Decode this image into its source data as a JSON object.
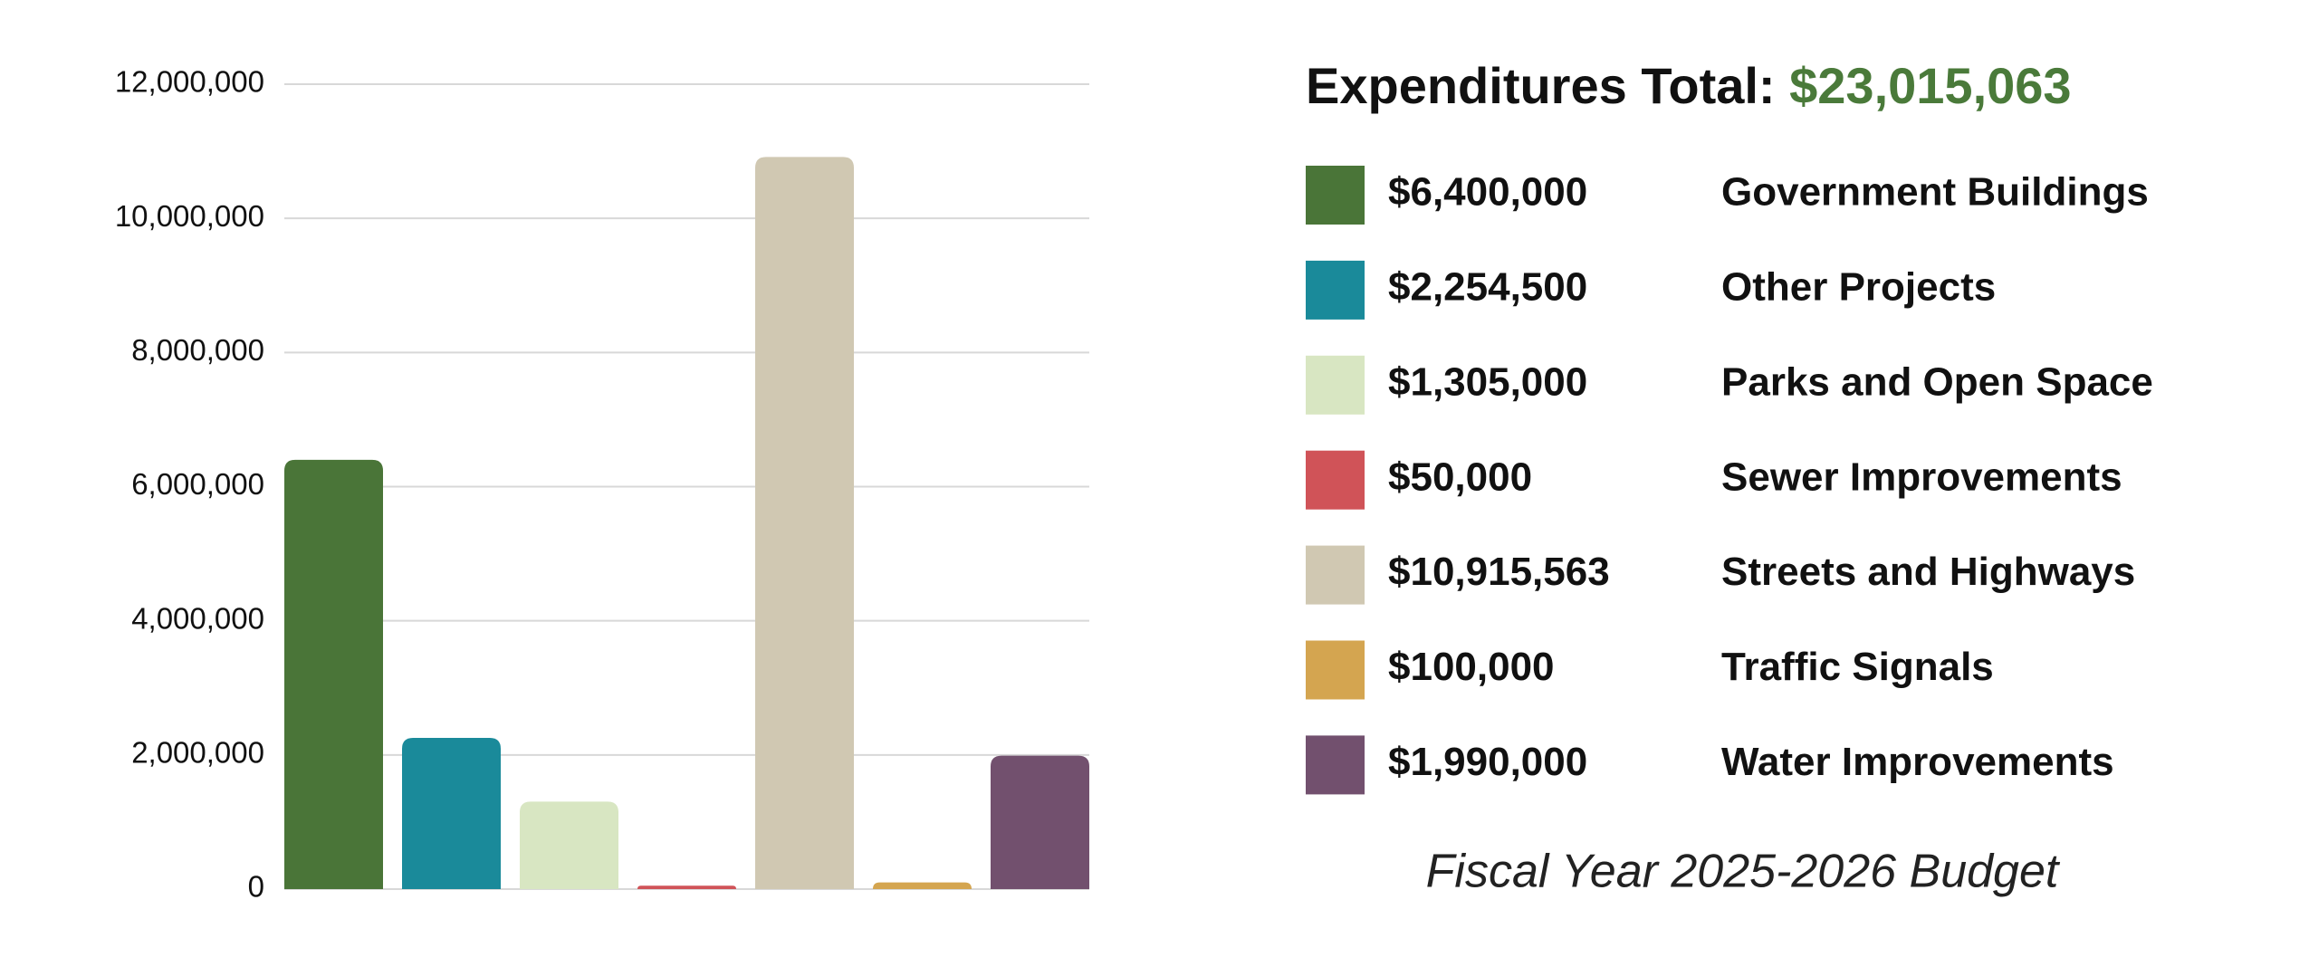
{
  "chart_data": {
    "type": "bar",
    "title": "Expenditures Total:",
    "total": "$23,015,063",
    "total_color": "#4a7a3a",
    "caption": "Fiscal Year 2025-2026 Budget",
    "categories": [
      "Government Buildings",
      "Other Projects",
      "Parks and Open Space",
      "Sewer Improvements",
      "Streets and Highways",
      "Traffic Signals",
      "Water Improvements"
    ],
    "values": [
      6400000,
      2254500,
      1305000,
      50000,
      10915563,
      100000,
      1990000
    ],
    "value_labels": [
      "$6,400,000",
      "$2,254,500",
      "$1,305,000",
      "$50,000",
      "$10,915,563",
      "$100,000",
      "$1,990,000"
    ],
    "colors": [
      "#4a7538",
      "#1a8a9a",
      "#d8e6c2",
      "#d05358",
      "#d0c8b2",
      "#d4a550",
      "#72506e"
    ],
    "ylim": [
      0,
      12000000
    ],
    "yticks": [
      0,
      {
        "value": 2000000,
        "label": "2,000,000"
      },
      {
        "value": 4000000,
        "label": "4,000,000"
      },
      {
        "value": 6000000,
        "label": "6,000,000"
      },
      {
        "value": 8000000,
        "label": "8,000,000"
      },
      {
        "value": 10000000,
        "label": "10,000,000"
      },
      {
        "value": 12000000,
        "label": "12,000,000"
      }
    ],
    "grid": true
  }
}
